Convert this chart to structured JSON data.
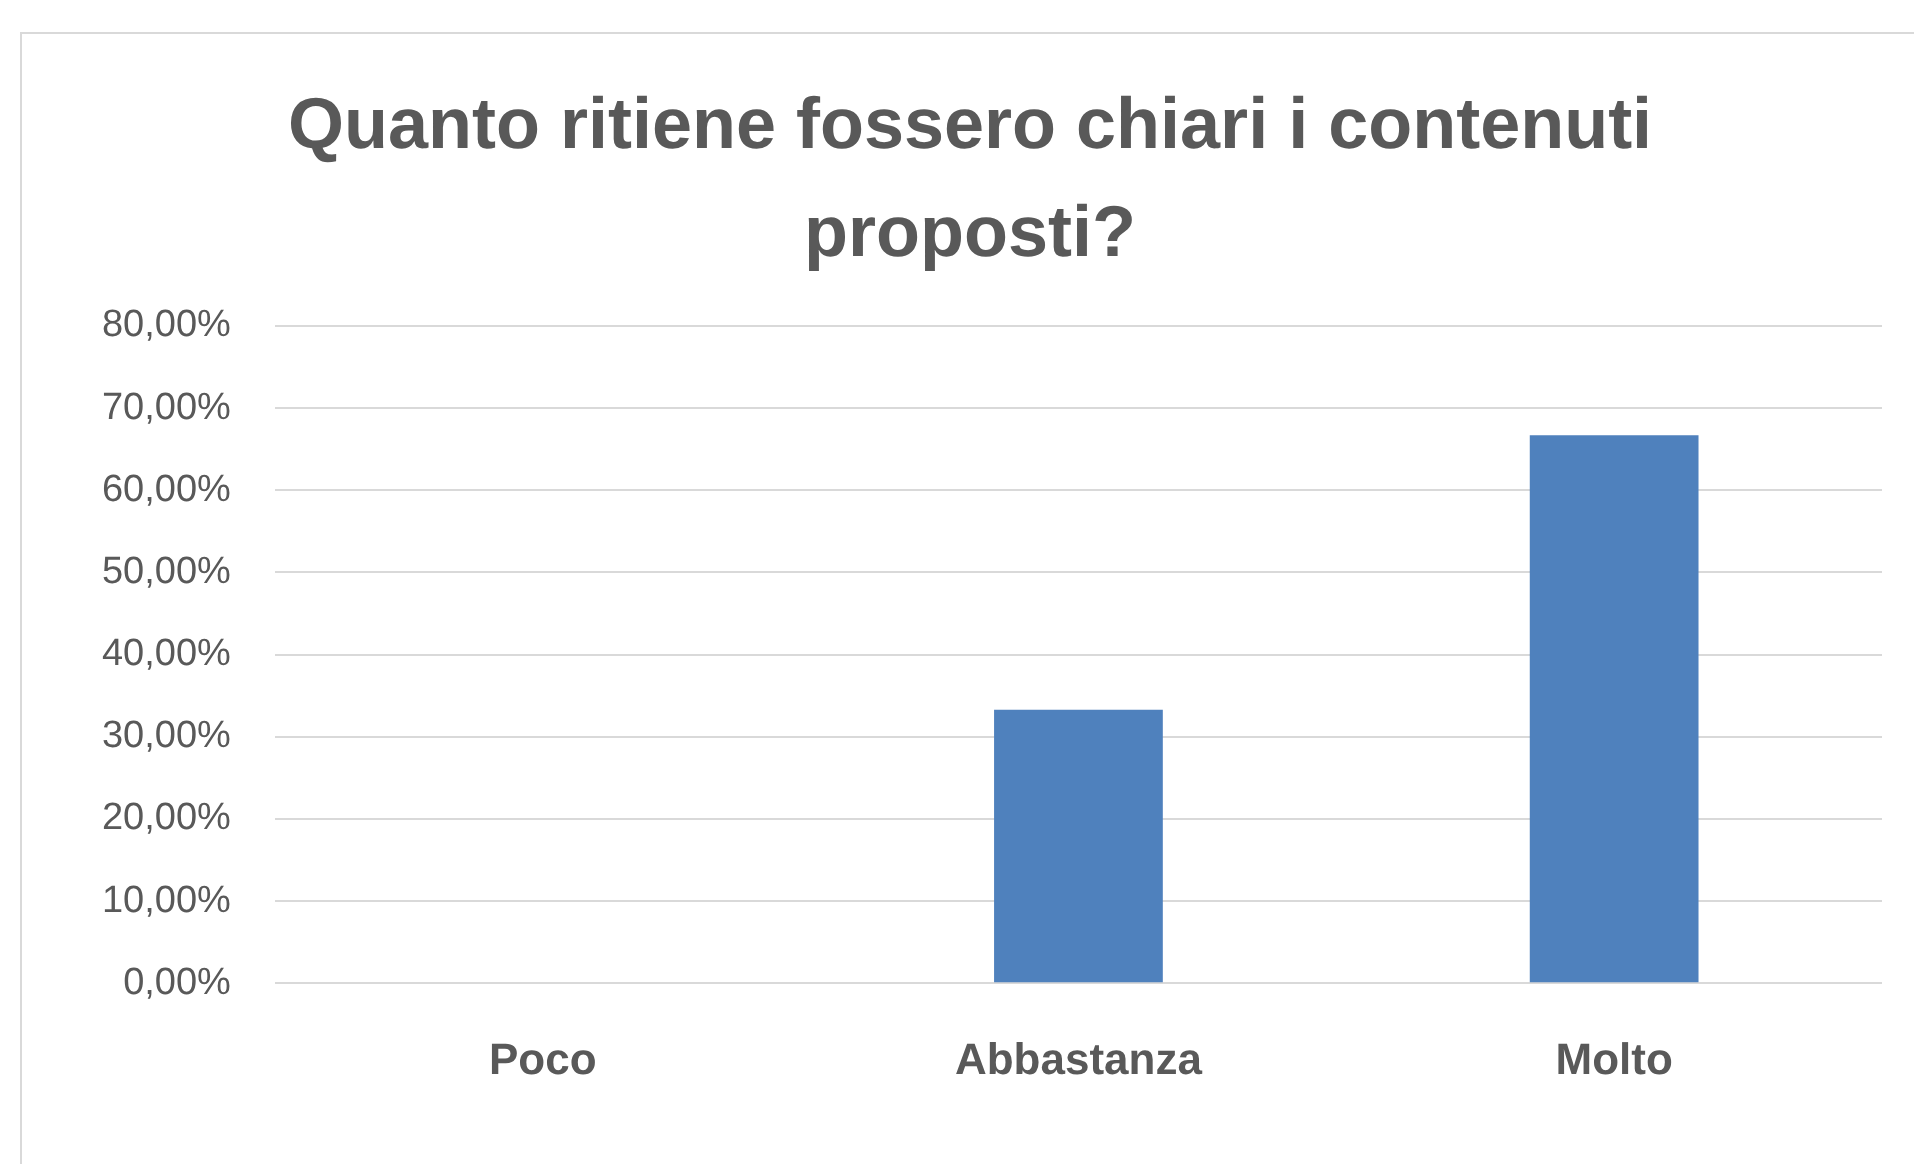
{
  "chart_data": {
    "type": "bar",
    "title": "Quanto ritiene fossero chiari i contenuti proposti?",
    "categories": [
      "Poco",
      "Abbastanza",
      "Molto"
    ],
    "values": [
      0,
      33.3,
      66.7
    ],
    "color": "#4f81bd",
    "ylim": [
      0,
      80
    ],
    "yticks": [
      {
        "value": 0,
        "label": "0,00%"
      },
      {
        "value": 10,
        "label": "10,00%"
      },
      {
        "value": 20,
        "label": "20,00%"
      },
      {
        "value": 30,
        "label": "30,00%"
      },
      {
        "value": 40,
        "label": "40,00%"
      },
      {
        "value": 50,
        "label": "50,00%"
      },
      {
        "value": 60,
        "label": "60,00%"
      },
      {
        "value": 70,
        "label": "70,00%"
      },
      {
        "value": 80,
        "label": "80,00%"
      }
    ],
    "grid": "y",
    "legend": false
  }
}
